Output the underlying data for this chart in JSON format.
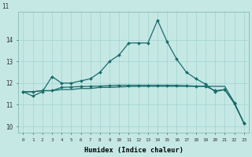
{
  "xlabel": "Humidex (Indice chaleur)",
  "bg_color": "#c5e8e5",
  "grid_color": "#a0d4d0",
  "line_color": "#1a6b6b",
  "ylim": [
    9.7,
    15.3
  ],
  "yticks": [
    10,
    11,
    12,
    13,
    14
  ],
  "ytop_label": "11",
  "x_values": [
    0,
    1,
    2,
    3,
    4,
    5,
    6,
    7,
    8,
    9,
    10,
    11,
    12,
    13,
    14,
    15,
    16,
    17,
    18,
    19,
    20,
    21,
    22,
    23
  ],
  "series1_markers": [
    11.6,
    11.4,
    11.6,
    12.3,
    12.0,
    12.0,
    12.1,
    12.2,
    12.5,
    13.0,
    13.3,
    13.85,
    13.85,
    13.85,
    14.9,
    13.9,
    13.1,
    12.5,
    12.2,
    11.95,
    11.6,
    11.7,
    11.05,
    10.15
  ],
  "series2_flat": [
    11.6,
    11.6,
    11.65,
    11.65,
    11.7,
    11.7,
    11.75,
    11.75,
    11.8,
    11.8,
    11.82,
    11.84,
    11.85,
    11.85,
    11.85,
    11.85,
    11.85,
    11.85,
    11.85,
    11.85,
    11.85,
    11.85,
    11.1,
    10.15
  ],
  "series3_markers": [
    11.6,
    11.6,
    11.65,
    11.65,
    11.8,
    11.82,
    11.84,
    11.85,
    11.86,
    11.88,
    11.9,
    11.9,
    11.9,
    11.9,
    11.9,
    11.9,
    11.9,
    11.88,
    11.86,
    11.85,
    11.65,
    11.7,
    11.1,
    10.15
  ]
}
